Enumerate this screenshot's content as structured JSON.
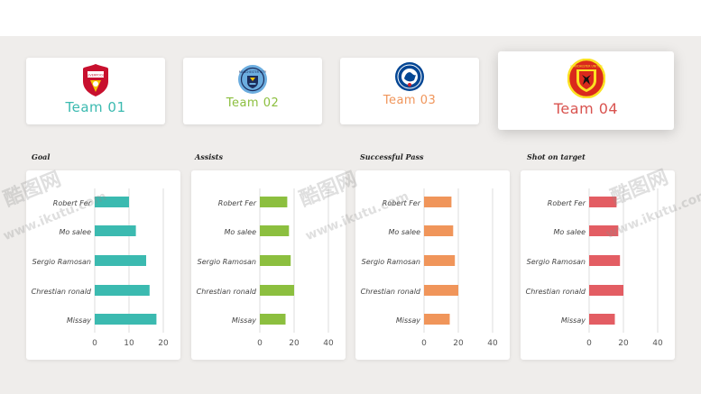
{
  "teams": [
    {
      "name": "Team 01",
      "color": "#3bbab0",
      "logo": "liverpool-crest-icon"
    },
    {
      "name": "Team 02",
      "color": "#8cbf3f",
      "logo": "manchester-city-crest-icon"
    },
    {
      "name": "Team 03",
      "color": "#f0955a",
      "logo": "chelsea-crest-icon"
    },
    {
      "name": "Team 04",
      "color": "#d9534f",
      "logo": "manchester-united-crest-icon"
    }
  ],
  "logo_text": {
    "liverpool": "LIVERPOOL",
    "city": "MANCHESTER CITY",
    "united": "MANCHESTER UNITED"
  },
  "watermark": {
    "logo": "酷图网",
    "url": "www.ikutu.com"
  },
  "chart_data": [
    {
      "type": "bar",
      "orientation": "horizontal",
      "title": "Goal",
      "categories": [
        "Robert Fer",
        "Mo salee",
        "Sergio Ramosan",
        "Chrestian ronald",
        "Missay"
      ],
      "values": [
        10,
        12,
        15,
        16,
        18
      ],
      "xlim": [
        0,
        20
      ],
      "xticks": [
        0,
        10,
        20
      ],
      "color": "#3bbab0",
      "grid": true
    },
    {
      "type": "bar",
      "orientation": "horizontal",
      "title": "Assists",
      "categories": [
        "Robert Fer",
        "Mo salee",
        "Sergio Ramosan",
        "Chrestian ronald",
        "Missay"
      ],
      "values": [
        16,
        17,
        18,
        20,
        15
      ],
      "xlim": [
        0,
        40
      ],
      "xticks": [
        0,
        20,
        40
      ],
      "color": "#8cbf3f",
      "grid": true
    },
    {
      "type": "bar",
      "orientation": "horizontal",
      "title": "Successful Pass",
      "categories": [
        "Robert Fer",
        "Mo salee",
        "Sergio Ramosan",
        "Chrestian ronald",
        "Missay"
      ],
      "values": [
        16,
        17,
        18,
        20,
        15
      ],
      "xlim": [
        0,
        40
      ],
      "xticks": [
        0,
        20,
        40
      ],
      "color": "#f0955a",
      "grid": true
    },
    {
      "type": "bar",
      "orientation": "horizontal",
      "title": "Shot on target",
      "categories": [
        "Robert Fer",
        "Mo salee",
        "Sergio Ramosan",
        "Chrestian ronald",
        "Missay"
      ],
      "values": [
        16,
        17,
        18,
        20,
        15
      ],
      "xlim": [
        0,
        40
      ],
      "xticks": [
        0,
        20,
        40
      ],
      "color": "#e35d63",
      "grid": true
    }
  ]
}
